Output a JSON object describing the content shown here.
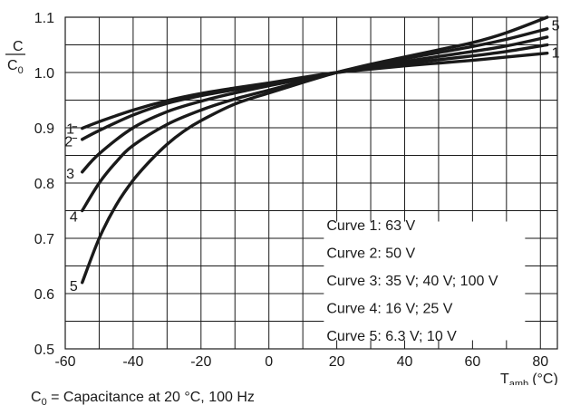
{
  "chart_data": {
    "type": "line",
    "title": "",
    "ylabel": {
      "numerator": "C",
      "denominator_main": "C",
      "denominator_sub": "0"
    },
    "xlabel": {
      "main": "T",
      "sub": "amb",
      "unit": "(°C)"
    },
    "xlim": [
      -60,
      85
    ],
    "ylim": [
      0.5,
      1.1
    ],
    "grid": true,
    "x_ticks": [
      -60,
      -40,
      -20,
      0,
      20,
      40,
      60,
      80
    ],
    "x_tick_labels": [
      "-60",
      "-40",
      "-20",
      "0",
      "20",
      "40",
      "60",
      "80"
    ],
    "y_ticks": [
      0.5,
      0.6,
      0.7,
      0.8,
      0.9,
      1.0,
      1.1
    ],
    "y_tick_labels": [
      "0.5",
      "0.6",
      "0.7",
      "0.8",
      "0.9",
      "1.0",
      "1.1"
    ],
    "series": [
      {
        "name": "1",
        "x": [
          -55,
          -50,
          -40,
          -30,
          -20,
          -10,
          0,
          10,
          20,
          30,
          40,
          50,
          60,
          70,
          82
        ],
        "y": [
          0.899,
          0.911,
          0.932,
          0.949,
          0.962,
          0.972,
          0.981,
          0.991,
          1.0,
          1.006,
          1.012,
          1.017,
          1.022,
          1.028,
          1.035
        ]
      },
      {
        "name": "2",
        "x": [
          -55,
          -50,
          -40,
          -30,
          -20,
          -10,
          0,
          10,
          20,
          30,
          40,
          50,
          60,
          70,
          82
        ],
        "y": [
          0.879,
          0.895,
          0.923,
          0.944,
          0.958,
          0.969,
          0.979,
          0.99,
          1.0,
          1.008,
          1.016,
          1.023,
          1.03,
          1.038,
          1.05
        ]
      },
      {
        "name": "3",
        "x": [
          -55,
          -50,
          -40,
          -30,
          -20,
          -10,
          0,
          10,
          20,
          30,
          40,
          50,
          60,
          70,
          82
        ],
        "y": [
          0.82,
          0.853,
          0.9,
          0.929,
          0.948,
          0.963,
          0.976,
          0.988,
          1.0,
          1.01,
          1.02,
          1.029,
          1.038,
          1.048,
          1.064
        ]
      },
      {
        "name": "4",
        "x": [
          -55,
          -50,
          -45,
          -40,
          -30,
          -20,
          -10,
          0,
          10,
          20,
          30,
          40,
          50,
          60,
          70,
          82
        ],
        "y": [
          0.75,
          0.8,
          0.838,
          0.868,
          0.906,
          0.932,
          0.952,
          0.968,
          0.984,
          1.0,
          1.013,
          1.025,
          1.036,
          1.047,
          1.06,
          1.079
        ]
      },
      {
        "name": "5",
        "x": [
          -55,
          -50,
          -45,
          -40,
          -35,
          -30,
          -25,
          -20,
          -10,
          0,
          10,
          20,
          30,
          40,
          50,
          60,
          70,
          82
        ],
        "y": [
          0.62,
          0.7,
          0.76,
          0.805,
          0.84,
          0.87,
          0.894,
          0.913,
          0.943,
          0.963,
          0.982,
          1.0,
          1.015,
          1.028,
          1.041,
          1.054,
          1.072,
          1.1
        ]
      }
    ],
    "curve_labels": [
      {
        "text": "1",
        "x": -58.5,
        "y": 0.899
      },
      {
        "text": "2",
        "x": -59,
        "y": 0.876
      },
      {
        "text": "3",
        "x": -58.5,
        "y": 0.818
      },
      {
        "text": "4",
        "x": -57.5,
        "y": 0.74
      },
      {
        "text": "5",
        "x": -57.5,
        "y": 0.615
      },
      {
        "text": "5",
        "x": 84.5,
        "y": 1.086
      },
      {
        "text": "1",
        "x": 84.5,
        "y": 1.037
      }
    ],
    "legend": {
      "placement": "lower-right",
      "entries": [
        "Curve 1: 63 V",
        "Curve 2: 50 V",
        "Curve 3: 35 V; 40 V; 100 V",
        "Curve 4: 16 V; 25 V",
        "Curve 5: 6.3 V; 10 V"
      ]
    }
  },
  "caption": {
    "main": "C",
    "sub": "0",
    "text": " = Capacitance at 20 °C, 100 Hz"
  }
}
